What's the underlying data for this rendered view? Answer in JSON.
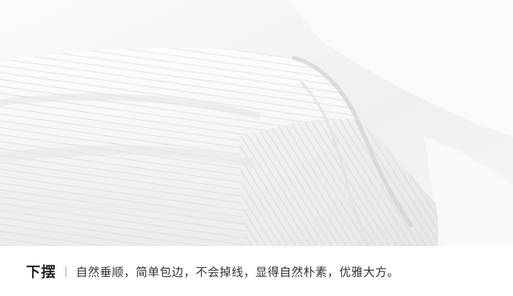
{
  "caption": {
    "title": "下摆",
    "description": "自然垂顺，简单包边，不会掉线，显得自然朴素，优雅大方。"
  },
  "colors": {
    "fabric": "#f4f4f4",
    "shadow": "#dedede",
    "text": "#333333",
    "divider": "#9a9a9a"
  }
}
